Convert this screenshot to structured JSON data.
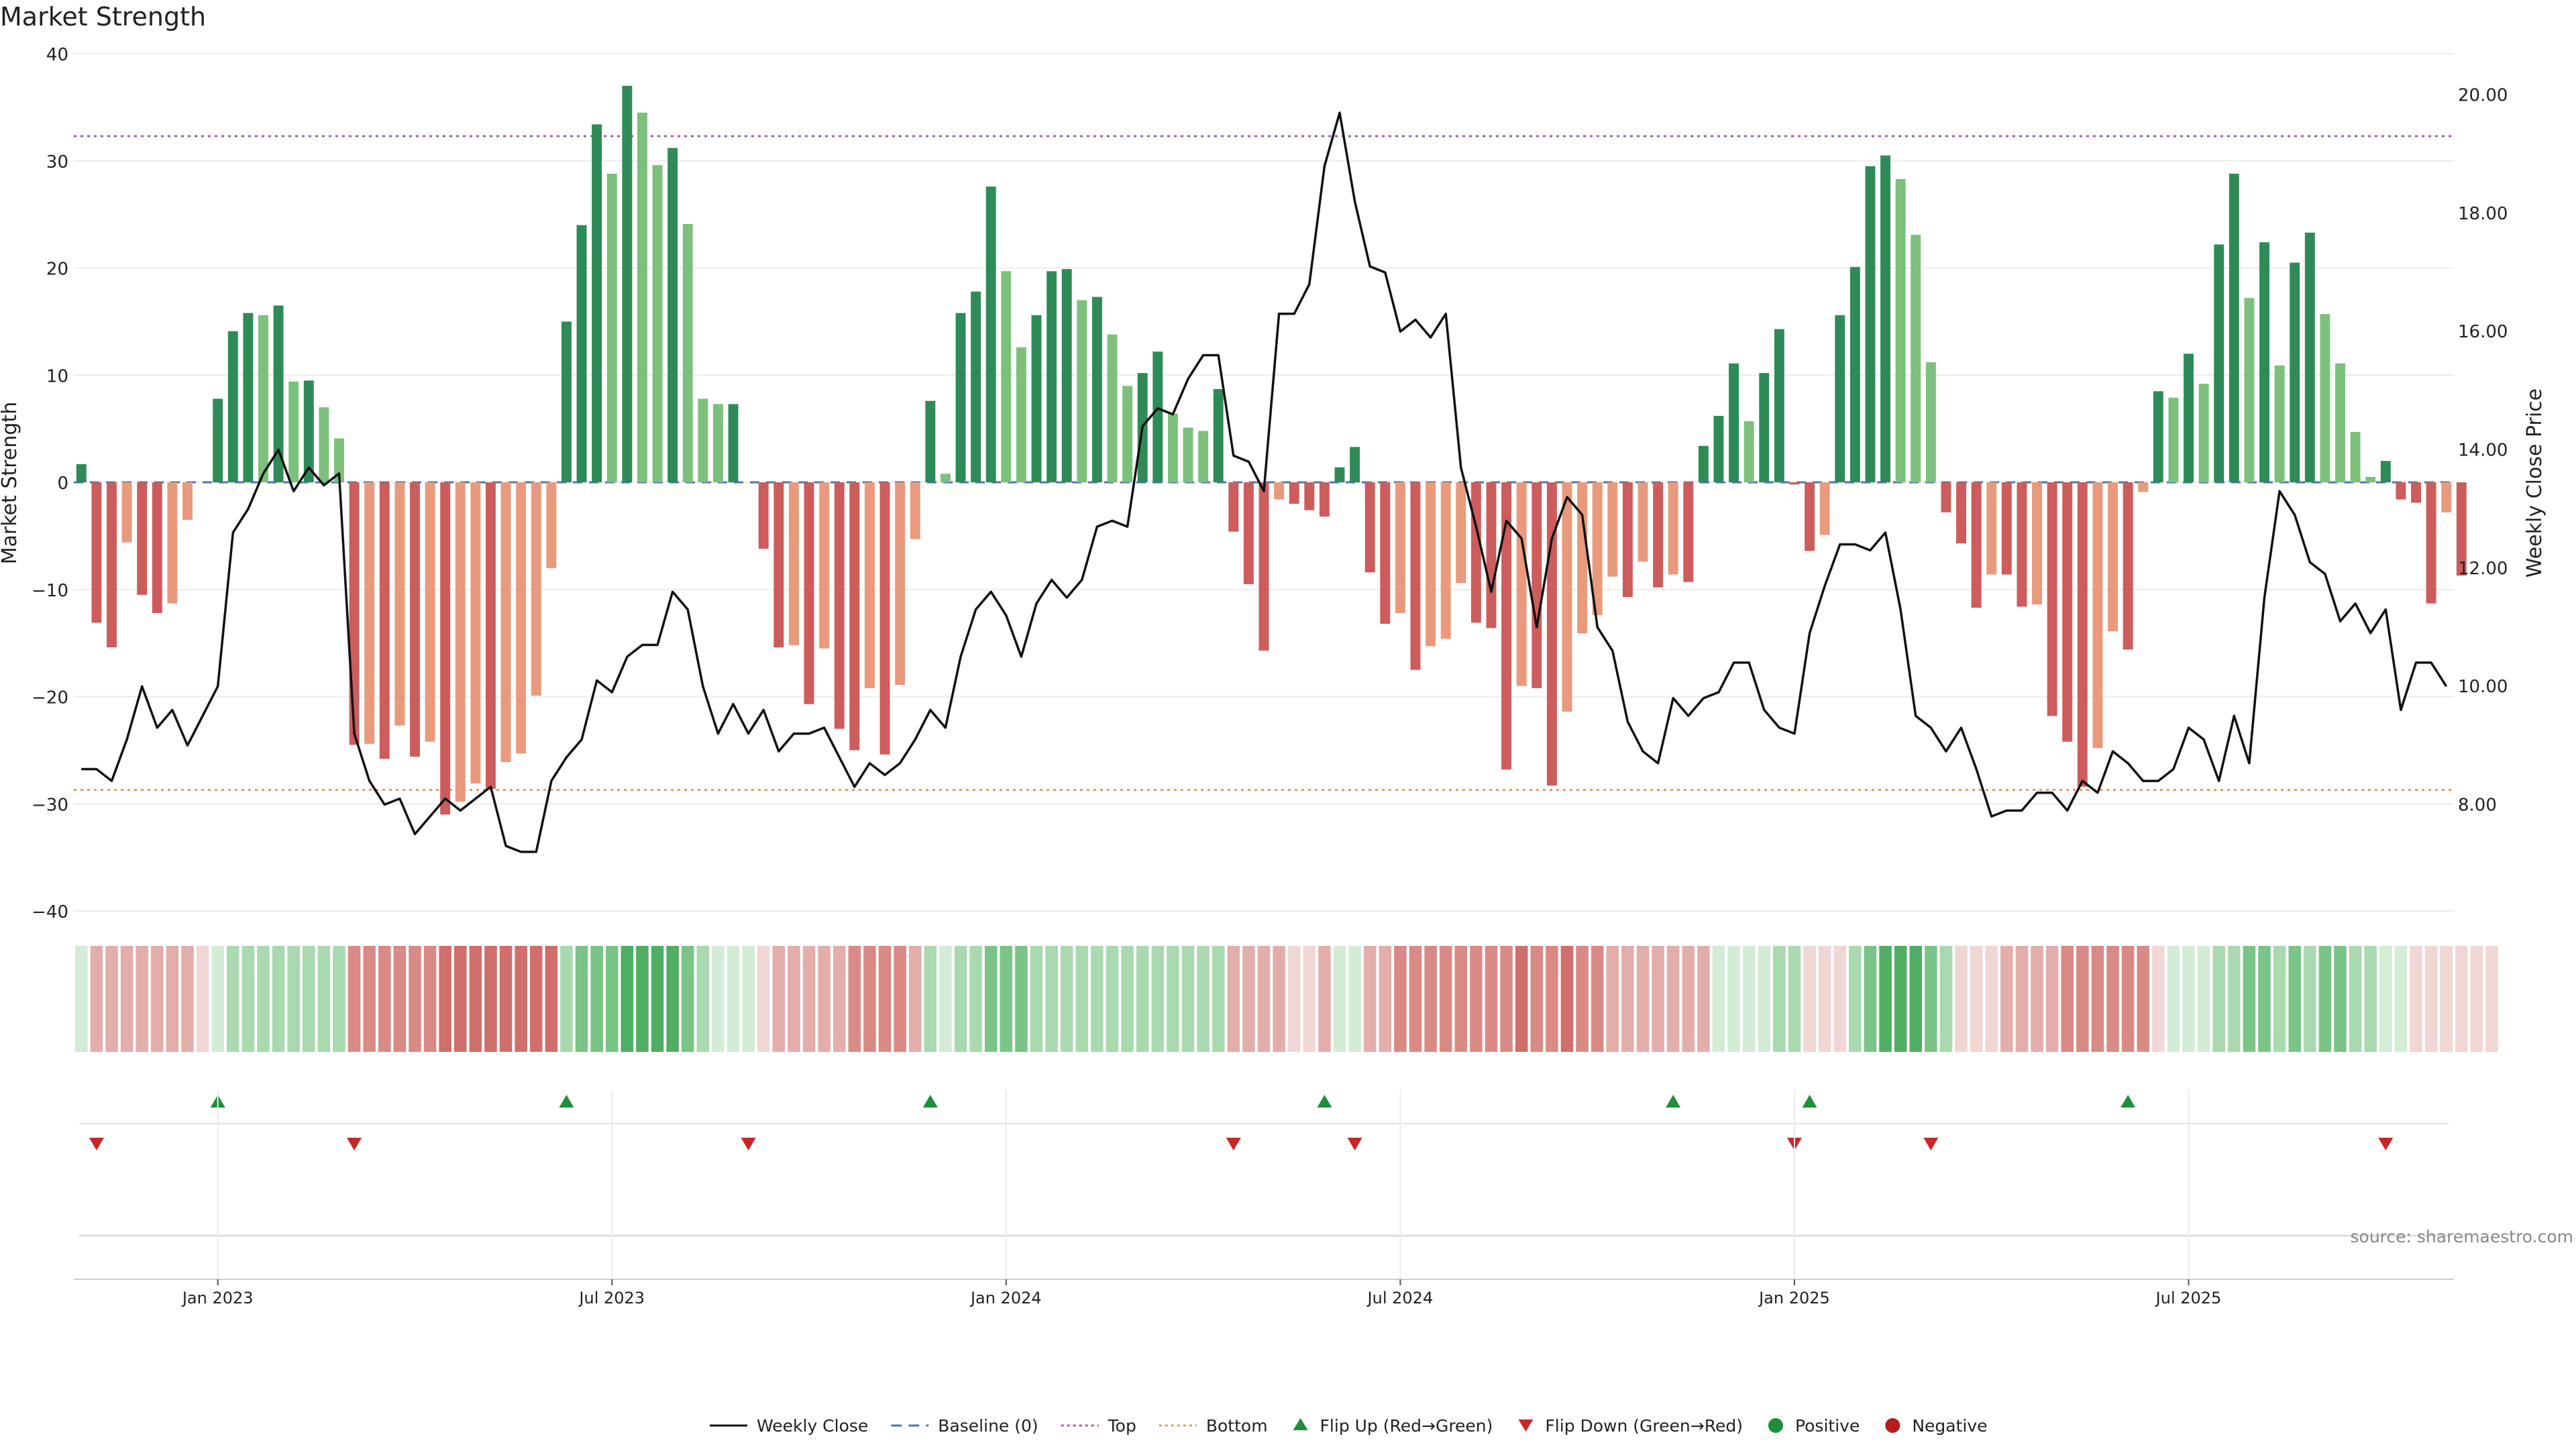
{
  "chart_data": {
    "type": "bar",
    "title": "Market Strength",
    "ylabel_left": "Market Strength",
    "ylabel_right": "Weekly Close Price",
    "ylim_left": [
      -40,
      40
    ],
    "yticks_left": [
      "40",
      "30",
      "20",
      "10",
      "0",
      "−10",
      "−20",
      "−30",
      "−40"
    ],
    "ylim_right": [
      6.2,
      20.7
    ],
    "yticks_right": [
      "20.00",
      "18.00",
      "16.00",
      "14.00",
      "12.00",
      "10.00",
      "8.00"
    ],
    "top_level": 32.3,
    "bottom_level": -28.7,
    "x_ticks": [
      "Jan 2023",
      "Jul 2023",
      "Jan 2024",
      "Jul 2024",
      "Jan 2025",
      "Jul 2025"
    ],
    "x_tick_weeks": [
      9,
      35,
      61,
      87,
      113,
      139
    ],
    "week_count": 157,
    "strength_values": [
      1.7,
      -13.1,
      -15.4,
      -5.6,
      -10.5,
      -12.2,
      -11.3,
      -3.5,
      0,
      7.8,
      14.1,
      15.8,
      15.6,
      16.5,
      9.4,
      9.5,
      7,
      4.1,
      -24.5,
      -24.4,
      -25.8,
      -22.7,
      -25.6,
      -24.2,
      -31,
      -29.8,
      -28.1,
      -28.6,
      -26.1,
      -25.3,
      -19.9,
      -8,
      15,
      24,
      33.4,
      28.8,
      37,
      34.5,
      29.6,
      31.2,
      24.1,
      7.8,
      7.3,
      7.3,
      0,
      -6.2,
      -15.4,
      -15.2,
      -20.7,
      -15.5,
      -23,
      -25,
      -19.2,
      -25.4,
      -18.9,
      -5.3,
      7.6,
      0.8,
      15.8,
      17.8,
      27.6,
      19.7,
      12.6,
      15.6,
      19.7,
      19.9,
      17,
      17.3,
      13.8,
      9,
      10.2,
      12.2,
      6.4,
      5.1,
      4.8,
      8.7,
      -4.6,
      -9.5,
      -15.7,
      -1.6,
      -2,
      -2.6,
      -3.2,
      1.4,
      3.3,
      -8.4,
      -13.2,
      -12.2,
      -17.5,
      -15.3,
      -14.6,
      -9.4,
      -13.1,
      -13.6,
      -26.8,
      -19,
      -19.2,
      -28.3,
      -21.4,
      -14.1,
      -12.4,
      -8.8,
      -10.7,
      -7.4,
      -9.8,
      -8.6,
      -9.3,
      3.4,
      6.2,
      11.1,
      5.7,
      10.2,
      14.3,
      -0.2,
      -6.4,
      -4.9,
      15.6,
      20.1,
      29.5,
      30.5,
      28.3,
      23.1,
      11.2,
      -2.8,
      -5.7,
      -11.7,
      -8.6,
      -8.6,
      -11.6,
      -11.4,
      -21.8,
      -24.2,
      -28.4,
      -24.8,
      -13.9,
      -15.6,
      -0.9,
      8.5,
      7.9,
      12,
      9.2,
      22.2,
      28.8,
      17.2,
      22.4,
      10.9,
      20.5,
      23.3,
      15.7,
      11.1,
      4.7,
      0.5,
      2,
      -1.6,
      -1.9,
      -11.3,
      -2.8,
      -8.7
    ],
    "close_values": [
      8.6,
      8.6,
      8.4,
      9.1,
      10,
      9.3,
      9.6,
      9,
      9.5,
      10,
      12.6,
      13,
      13.6,
      14,
      13.3,
      13.7,
      13.4,
      13.6,
      9.2,
      8.4,
      8,
      8.1,
      7.5,
      7.8,
      8.1,
      7.9,
      8.1,
      8.3,
      7.3,
      7.2,
      7.2,
      8.4,
      8.8,
      9.1,
      10.1,
      9.9,
      10.5,
      10.7,
      10.7,
      11.6,
      11.3,
      10,
      9.2,
      9.7,
      9.2,
      9.6,
      8.9,
      9.2,
      9.2,
      9.3,
      8.8,
      8.3,
      8.7,
      8.5,
      8.7,
      9.1,
      9.6,
      9.3,
      10.5,
      11.3,
      11.6,
      11.2,
      10.5,
      11.4,
      11.8,
      11.5,
      11.8,
      12.7,
      12.8,
      12.7,
      14.4,
      14.7,
      14.6,
      15.2,
      15.6,
      15.6,
      13.9,
      13.8,
      13.3,
      16.3,
      16.3,
      16.8,
      18.8,
      19.7,
      18.2,
      17.1,
      17,
      16,
      16.2,
      15.9,
      16.3,
      13.7,
      12.7,
      11.6,
      12.8,
      12.5,
      11,
      12.5,
      13.2,
      12.9,
      11,
      10.6,
      9.4,
      8.9,
      8.7,
      9.8,
      9.5,
      9.8,
      9.9,
      10.4,
      10.4,
      9.6,
      9.3,
      9.2,
      10.9,
      11.7,
      12.4,
      12.4,
      12.3,
      12.6,
      11.3,
      9.5,
      9.3,
      8.9,
      9.3,
      8.6,
      7.8,
      7.9,
      7.9,
      8.2,
      8.2,
      7.9,
      8.4,
      8.2,
      8.9,
      8.7,
      8.4,
      8.4,
      8.6,
      9.3,
      9.1,
      8.4,
      9.5,
      8.7,
      11.5,
      13.3,
      12.9,
      12.1,
      11.9,
      11.1,
      11.4,
      10.9,
      11.3,
      9.6,
      10.4,
      10.4,
      10
    ],
    "shade_codes": [
      1,
      -2,
      -2,
      -2,
      -2,
      -2,
      -2,
      -2,
      -1,
      1,
      2,
      2,
      2,
      2,
      2,
      2,
      2,
      2,
      -3,
      -3,
      -3,
      -3,
      -3,
      -3,
      -4,
      -4,
      -4,
      -4,
      -4,
      -4,
      -4,
      -4,
      2,
      3,
      3,
      3,
      4,
      4,
      4,
      4,
      3,
      2,
      1,
      1,
      1,
      -1,
      -2,
      -2,
      -2,
      -2,
      -2,
      -3,
      -3,
      -3,
      -3,
      -2,
      2,
      1,
      2,
      2,
      3,
      3,
      3,
      2,
      2,
      2,
      2,
      2,
      2,
      2,
      2,
      2,
      2,
      2,
      2,
      2,
      -2,
      -2,
      -2,
      -2,
      -1,
      -1,
      -2,
      1,
      1,
      -2,
      -2,
      -3,
      -3,
      -3,
      -3,
      -3,
      -3,
      -3,
      -3,
      -4,
      -3,
      -3,
      -4,
      -3,
      -3,
      -2,
      -2,
      -2,
      -2,
      -2,
      -2,
      -2,
      1,
      1,
      1,
      1,
      2,
      2,
      -1,
      -1,
      -1,
      2,
      3,
      4,
      4,
      4,
      3,
      2,
      -1,
      -1,
      -1,
      -2,
      -2,
      -2,
      -2,
      -3,
      -3,
      -3,
      -3,
      -3,
      -3,
      -1,
      1,
      1,
      1,
      2,
      2,
      3,
      3,
      2,
      3,
      2,
      3,
      3,
      2,
      2,
      1,
      1,
      -1,
      -1,
      -1,
      -1,
      -1,
      -1
    ],
    "flip_up_weeks": [
      9,
      32,
      56,
      82,
      105,
      114,
      135
    ],
    "flip_down_weeks": [
      1,
      18,
      44,
      76,
      84,
      113,
      122,
      152
    ],
    "series": [
      {
        "name": "Weekly Close",
        "kind": "line",
        "color": "#111111"
      },
      {
        "name": "Baseline (0)",
        "kind": "dashed",
        "color": "#4a78b3"
      },
      {
        "name": "Top",
        "kind": "dotted",
        "color": "#a05bbf"
      },
      {
        "name": "Bottom",
        "kind": "dotted",
        "color": "#e89a56"
      },
      {
        "name": "Flip Up (Red→Green)",
        "kind": "triangle-up",
        "color": "#1f8f3a"
      },
      {
        "name": "Flip Down (Green→Red)",
        "kind": "triangle-down",
        "color": "#c62828"
      },
      {
        "name": "Positive",
        "kind": "circle",
        "color": "#1f8f3a"
      },
      {
        "name": "Negative",
        "kind": "circle",
        "color": "#b71c1c"
      }
    ],
    "colors": {
      "pos_strong": "#2e8b57",
      "pos_weak": "#7cc07c",
      "neg_strong": "#cd5c5c",
      "neg_weak": "#e99a7c",
      "heat_pos": [
        "#d3ecd5",
        "#a9d9ae",
        "#7bc487",
        "#4fae62"
      ],
      "heat_neg": [
        "#f0d6d4",
        "#e3aeaa",
        "#d98a85",
        "#cf6e6a"
      ]
    },
    "source": "source: sharemaestro.com"
  }
}
